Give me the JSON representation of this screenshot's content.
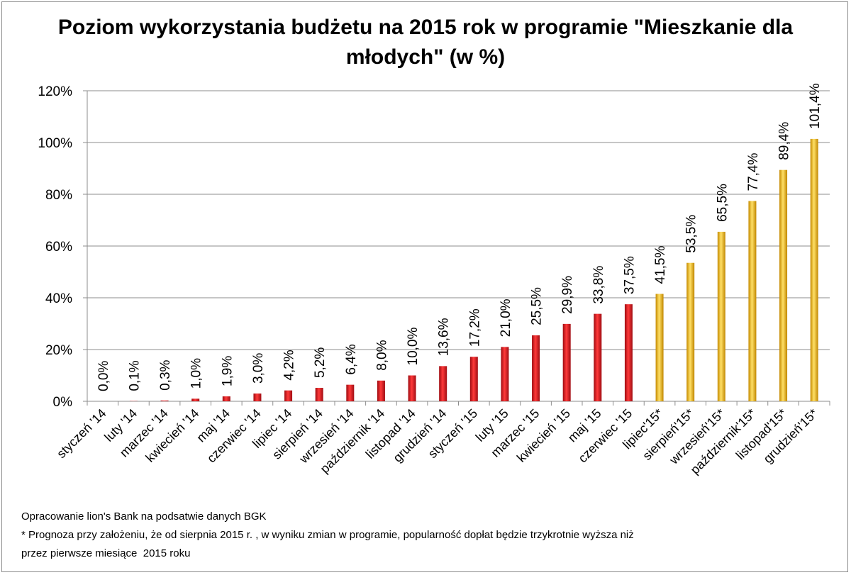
{
  "chart_data": {
    "type": "bar",
    "title_line1": "Poziom wykorzystania budżetu na 2015 rok w programie \"Mieszkanie dla",
    "title_line2": "młodych\" (w %)",
    "xlabel": "",
    "ylabel": "",
    "ylim": [
      0,
      120
    ],
    "yticks": [
      "0%",
      "20%",
      "40%",
      "60%",
      "80%",
      "100%",
      "120%"
    ],
    "ytick_values": [
      0,
      20,
      40,
      60,
      80,
      100,
      120
    ],
    "grid": true,
    "categories": [
      "styczeń '14",
      "luty '14",
      "marzec '14",
      "kwiecień '14",
      "maj '14",
      "czerwiec '14",
      "lipiec '14",
      "sierpień '14",
      "wrzesień '14",
      "październik '14",
      "listopad '14",
      "grudzień '14",
      "styczeń '15",
      "luty '15",
      "marzec '15",
      "kwiecień '15",
      "maj '15",
      "czerwiec '15",
      "lipiec'15*",
      "sierpień'15*",
      "wrzesień'15*",
      "październik'15*",
      "listopad'15*",
      "grudzień'15*"
    ],
    "values": [
      0.0,
      0.1,
      0.3,
      1.0,
      1.9,
      3.0,
      4.2,
      5.2,
      6.4,
      8.0,
      10.0,
      13.6,
      17.2,
      21.0,
      25.5,
      29.9,
      33.8,
      37.5,
      41.5,
      53.5,
      65.5,
      77.4,
      89.4,
      101.4
    ],
    "value_labels": [
      "0,0%",
      "0,1%",
      "0,3%",
      "1,0%",
      "1,9%",
      "3,0%",
      "4,2%",
      "5,2%",
      "6,4%",
      "8,0%",
      "10,0%",
      "13,6%",
      "17,2%",
      "21,0%",
      "25,5%",
      "29,9%",
      "33,8%",
      "37,5%",
      "41,5%",
      "53,5%",
      "65,5%",
      "77,4%",
      "89,4%",
      "101,4%"
    ],
    "forecast": [
      false,
      false,
      false,
      false,
      false,
      false,
      false,
      false,
      false,
      false,
      false,
      false,
      false,
      false,
      false,
      false,
      false,
      false,
      true,
      true,
      true,
      true,
      true,
      true
    ],
    "colors": {
      "actual": "#e8141c",
      "forecast": "#f2b800",
      "grid": "#8c8c8c",
      "axis": "#8c8c8c"
    }
  },
  "notes": {
    "source": "Opracowanie lion's Bank na podsatwie danych BGK",
    "footnote_line1": "* Prognoza przy założeniu, że od sierpnia 2015 r. , w wyniku zmian w programie, popularność dopłat będzie trzykrotnie wyższa niż",
    "footnote_line2": "przez pierwsze miesiące  2015 roku"
  }
}
